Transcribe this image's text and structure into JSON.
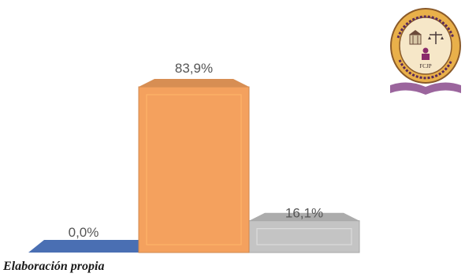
{
  "chart_data": {
    "type": "bar",
    "categories": [
      "",
      "",
      ""
    ],
    "values": [
      0.0,
      83.9,
      16.1
    ],
    "data_labels": [
      "0,0%",
      "83,9%",
      "16,1%"
    ],
    "colors": [
      "#4a6fb3",
      "#f4a15e",
      "#c4c4c4"
    ],
    "title": "",
    "xlabel": "",
    "ylabel": "",
    "ylim": [
      0,
      100
    ],
    "grid": false,
    "legend": "none",
    "style": "3d"
  },
  "source_note": "Elaboración propia",
  "logo": {
    "icon": "university-seal-icon",
    "text": "FCJP"
  }
}
